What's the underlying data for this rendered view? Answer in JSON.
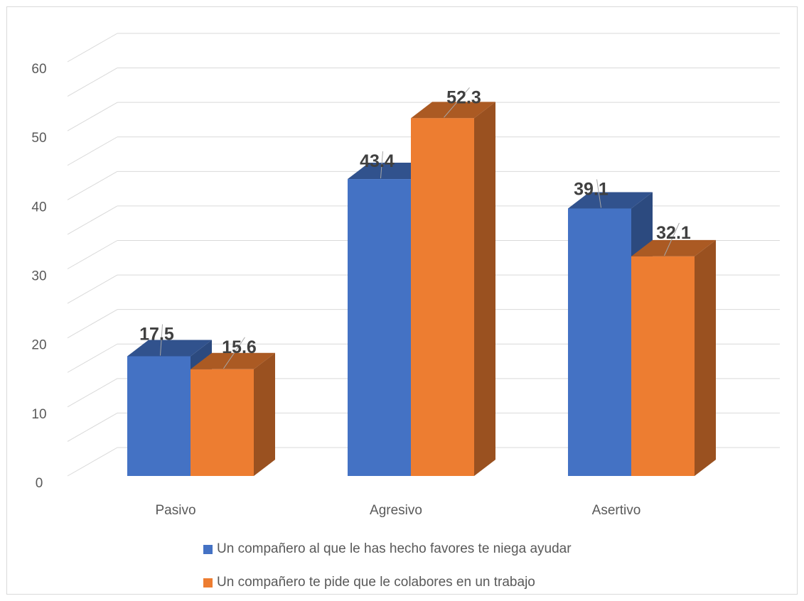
{
  "chart_data": {
    "type": "bar",
    "title": "",
    "xlabel": "",
    "ylabel": "",
    "categories": [
      "Pasivo",
      "Agresivo",
      "Asertivo"
    ],
    "series": [
      {
        "name": "Un compañero al que le has hecho favores te niega ayudar",
        "values": [
          17.5,
          43.4,
          39.1
        ],
        "color": "#4472C4"
      },
      {
        "name": "Un compañero te pide que le colabores en un trabajo",
        "values": [
          15.6,
          52.3,
          32.1
        ],
        "color": "#ED7D31"
      }
    ],
    "data_labels": {
      "series_0": [
        "17.5",
        "43.4",
        "39.1"
      ],
      "series_1": [
        "15.6",
        "52.3",
        "32.1"
      ]
    },
    "ylim": [
      0,
      60
    ],
    "yticks": [
      "0",
      "10",
      "20",
      "30",
      "40",
      "50",
      "60"
    ],
    "grid": true,
    "legend_position": "bottom",
    "style": "3d-clustered-column"
  }
}
